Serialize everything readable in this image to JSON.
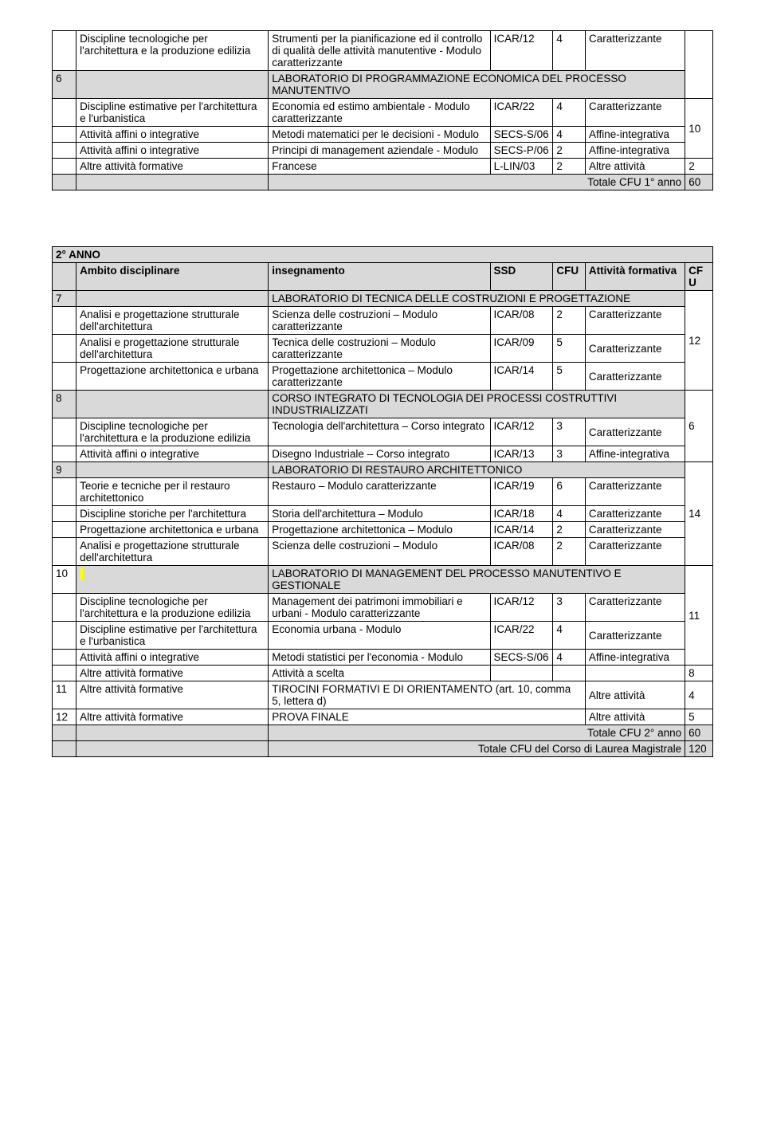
{
  "t1": {
    "r1": {
      "amb": "Discipline tecnologiche per l'architettura e la produzione edilizia",
      "ins": "Strumenti per la pianificazione ed il controllo di qualità delle attività manutentive - Modulo caratterizzante",
      "ssd": "ICAR/12",
      "cfu": "4",
      "att": "Caratterizzante"
    },
    "r2": {
      "n": "6",
      "lab": "LABORATORIO DI PROGRAMMAZIONE ECONOMICA DEL PROCESSO MANUTENTIVO"
    },
    "r3": {
      "amb": "Discipline estimative per l'architettura e l'urbanistica",
      "ins": "Economia ed estimo ambientale - Modulo caratterizzante",
      "ssd": "ICAR/22",
      "cfu": "4",
      "att": "Caratterizzante"
    },
    "r4": {
      "amb": "Attività affini o integrative",
      "ins": "Metodi matematici per le decisioni - Modulo",
      "ssd": "SECS-S/06",
      "cfu": "4",
      "att": "Affine-integrativa",
      "cfu2": "10"
    },
    "r5": {
      "amb": "Attività affini o integrative",
      "ins": "Principi di management aziendale - Modulo",
      "ssd": "SECS-P/06",
      "cfu": "2",
      "att": "Affine-integrativa"
    },
    "r6": {
      "amb": "Altre attività formative",
      "ins": "Francese",
      "ssd": "L-LIN/03",
      "cfu": "2",
      "att": "Altre attività",
      "cfu2": "2"
    },
    "tot": {
      "label": "Totale CFU 1° anno",
      "val": "60"
    }
  },
  "t2": {
    "title": "2° ANNO",
    "hdr": {
      "amb": "Ambito disciplinare",
      "ins": "insegnamento",
      "ssd": "SSD",
      "cfu": "CFU",
      "att": "Attività formativa",
      "cfu2": "CFU"
    },
    "r1": {
      "n": "7",
      "lab": "LABORATORIO DI TECNICA DELLE COSTRUZIONI E PROGETTAZIONE"
    },
    "r2": {
      "amb": "Analisi e progettazione strutturale dell'architettura",
      "ins": "Scienza delle costruzioni – Modulo caratterizzante",
      "ssd": "ICAR/08",
      "cfu": "2",
      "att": "Caratterizzante",
      "cfu2": "12"
    },
    "r3": {
      "amb": "Analisi e progettazione strutturale dell'architettura",
      "ins": "Tecnica delle costruzioni – Modulo caratterizzante",
      "ssd": "ICAR/09",
      "cfu": "5",
      "att": "Caratterizzante"
    },
    "r4": {
      "amb": "Progettazione architettonica e urbana",
      "ins": "Progettazione architettonica – Modulo caratterizzante",
      "ssd": "ICAR/14",
      "cfu": "5",
      "att": "Caratterizzante"
    },
    "r5": {
      "n": "8",
      "lab": "CORSO INTEGRATO DI TECNOLOGIA DEI PROCESSI COSTRUTTIVI INDUSTRIALIZZATI"
    },
    "r6": {
      "amb": "Discipline tecnologiche per l'architettura e la produzione edilizia",
      "ins": "Tecnologia dell'architettura – Corso integrato",
      "ssd": "ICAR/12",
      "cfu": "3",
      "att": "Caratterizzante",
      "cfu2": "6"
    },
    "r7": {
      "amb": "Attività affini o integrative",
      "ins": "Disegno Industriale – Corso integrato",
      "ssd": "ICAR/13",
      "cfu": "3",
      "att": "Affine-integrativa"
    },
    "r8": {
      "n": "9",
      "lab": "LABORATORIO DI RESTAURO ARCHITETTONICO"
    },
    "r9": {
      "amb": "Teorie e tecniche per il restauro architettonico",
      "ins": "Restauro – Modulo caratterizzante",
      "ssd": "ICAR/19",
      "cfu": "6",
      "att": "Caratterizzante"
    },
    "r10": {
      "amb": "Discipline storiche per l'architettura",
      "ins": "Storia dell'architettura – Modulo",
      "ssd": "ICAR/18",
      "cfu": "4",
      "att": "Caratterizzante",
      "cfu2": "14"
    },
    "r11": {
      "amb": "Progettazione architettonica e urbana",
      "ins": "Progettazione architettonica – Modulo",
      "ssd": "ICAR/14",
      "cfu": "2",
      "att": "Caratterizzante"
    },
    "r12": {
      "amb": "Analisi e progettazione strutturale dell'architettura",
      "ins": "Scienza delle costruzioni – Modulo",
      "ssd": "ICAR/08",
      "cfu": "2",
      "att": "Caratterizzante"
    },
    "r13": {
      "n": "10",
      "lab": "LABORATORIO DI MANAGEMENT DEL PROCESSO MANUTENTIVO E GESTIONALE"
    },
    "r14": {
      "amb": "Discipline tecnologiche per l'architettura e la produzione edilizia",
      "ins": "Management dei patrimoni immobiliari e urbani - Modulo caratterizzante",
      "ssd": "ICAR/12",
      "cfu": "3",
      "att": "Caratterizzante"
    },
    "r15": {
      "amb": "Discipline estimative per l'architettura e l'urbanistica",
      "ins": "Economia urbana - Modulo",
      "ssd": "ICAR/22",
      "cfu": "4",
      "att": "Caratterizzante",
      "cfu2": "11"
    },
    "r16": {
      "amb": "Attività affini o integrative",
      "ins": "Metodi statistici per l'economia - Modulo",
      "ssd": "SECS-S/06",
      "cfu": "4",
      "att": "Affine-integrativa"
    },
    "r17": {
      "amb": "Altre attività formative",
      "ins": "Attività a scelta",
      "cfu2": "8"
    },
    "r18": {
      "n": "11",
      "amb": "Altre attività formative",
      "ins": "TIROCINI FORMATIVI E DI ORIENTAMENTO (art. 10, comma 5, lettera d)",
      "att": "Altre attività",
      "cfu2": "4"
    },
    "r19": {
      "n": "12",
      "amb": "Altre attività formative",
      "ins": "PROVA FINALE",
      "att": "Altre attività",
      "cfu2": "5"
    },
    "tot1": {
      "label": "Totale CFU 2° anno",
      "val": "60"
    },
    "tot2": {
      "label": "Totale CFU del Corso di Laurea Magistrale",
      "val": "120"
    }
  }
}
